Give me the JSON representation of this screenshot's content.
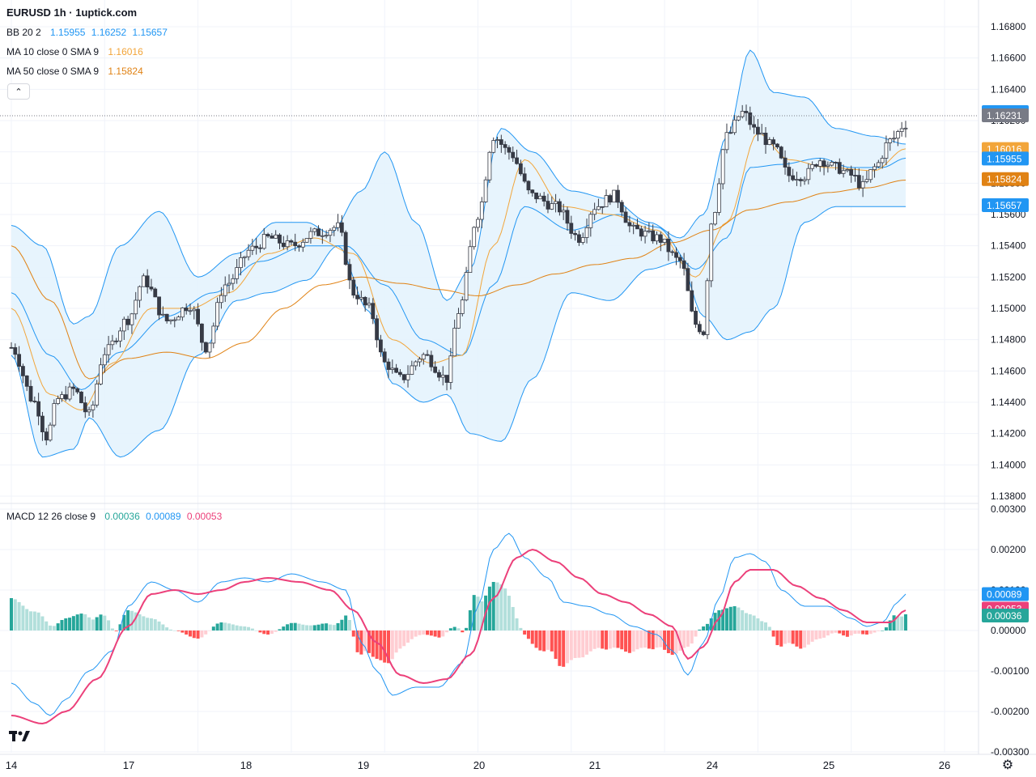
{
  "title": "EURUSD 1h · 1uptick.com",
  "legend": {
    "bb": {
      "label": "BB 20 2",
      "values": [
        "1.15955",
        "1.16252",
        "1.15657"
      ]
    },
    "ma10": {
      "label": "MA 10 close 0 SMA 9",
      "value": "1.16016"
    },
    "ma50": {
      "label": "MA 50 close 0 SMA 9",
      "value": "1.15824"
    },
    "macd": {
      "label": "MACD 12 26 close 9",
      "values": [
        "0.00036",
        "0.00089",
        "0.00053"
      ]
    }
  },
  "colors": {
    "bb": "#2196f3",
    "bb_fill": "#e3f2fd",
    "ma10": "#f2a53a",
    "ma50": "#e08214",
    "macd_line": "#2196f3",
    "signal_line": "#ec407a",
    "hist_pos_strong": "#26a69a",
    "hist_pos_weak": "#b2dfdb",
    "hist_neg_strong": "#ff5252",
    "hist_neg_weak": "#ffcdd2",
    "candle": "#363a45",
    "current_price": "#787b86"
  },
  "icons": {
    "collapse": "chevron-up-icon",
    "logo": "tradingview-logo-icon",
    "settings": "gear-icon"
  },
  "chart_data": [
    {
      "type": "candlestick",
      "title": "EURUSD 1h · 1uptick.com",
      "x_ticks": [
        "14",
        "17",
        "18",
        "19",
        "20",
        "21",
        "24",
        "25",
        "26"
      ],
      "y_ticks": [
        "1.16800",
        "1.16600",
        "1.16400",
        "1.16200",
        "1.16000",
        "1.15800",
        "1.15600",
        "1.15400",
        "1.15200",
        "1.15000",
        "1.14800",
        "1.14600",
        "1.14400",
        "1.14200",
        "1.14000",
        "1.13800"
      ],
      "ylim": [
        1.1378,
        1.1683
      ],
      "bars_per_day": 24,
      "last_price": "1.16231",
      "axis_labels": [
        {
          "text": "1.16252",
          "value": 1.16252,
          "color": "#2196f3"
        },
        {
          "text": "1.16231",
          "value": 1.16231,
          "color": "#787b86"
        },
        {
          "text": "1.16016",
          "value": 1.16016,
          "color": "#f2a53a"
        },
        {
          "text": "1.15955",
          "value": 1.15955,
          "color": "#2196f3"
        },
        {
          "text": "1.15824",
          "value": 1.15824,
          "color": "#e08214"
        },
        {
          "text": "1.15657",
          "value": 1.15657,
          "color": "#2196f3"
        }
      ],
      "close_anchors": [
        [
          0,
          1.1475
        ],
        [
          6,
          1.144
        ],
        [
          9,
          1.1418
        ],
        [
          12,
          1.1442
        ],
        [
          16,
          1.1448
        ],
        [
          20,
          1.1432
        ],
        [
          24,
          1.1472
        ],
        [
          30,
          1.1493
        ],
        [
          34,
          1.1518
        ],
        [
          40,
          1.1492
        ],
        [
          46,
          1.1502
        ],
        [
          50,
          1.1475
        ],
        [
          55,
          1.1515
        ],
        [
          62,
          1.1538
        ],
        [
          66,
          1.1545
        ],
        [
          72,
          1.154
        ],
        [
          78,
          1.1548
        ],
        [
          84,
          1.1552
        ],
        [
          88,
          1.151
        ],
        [
          92,
          1.15
        ],
        [
          96,
          1.1465
        ],
        [
          100,
          1.1455
        ],
        [
          106,
          1.147
        ],
        [
          112,
          1.1455
        ],
        [
          115,
          1.1498
        ],
        [
          120,
          1.156
        ],
        [
          124,
          1.161
        ],
        [
          128,
          1.16
        ],
        [
          134,
          1.1572
        ],
        [
          140,
          1.1565
        ],
        [
          146,
          1.1545
        ],
        [
          150,
          1.1565
        ],
        [
          155,
          1.1572
        ],
        [
          160,
          1.155
        ],
        [
          166,
          1.1545
        ],
        [
          172,
          1.153
        ],
        [
          176,
          1.149
        ],
        [
          178,
          1.1485
        ],
        [
          180,
          1.1555
        ],
        [
          184,
          1.161
        ],
        [
          188,
          1.1625
        ],
        [
          192,
          1.1612
        ],
        [
          196,
          1.1603
        ],
        [
          200,
          1.1585
        ],
        [
          204,
          1.1585
        ],
        [
          208,
          1.1595
        ],
        [
          212,
          1.159
        ],
        [
          216,
          1.1585
        ],
        [
          219,
          1.1578
        ],
        [
          222,
          1.159
        ],
        [
          226,
          1.1607
        ],
        [
          230,
          1.1618
        ]
      ],
      "bollinger": {
        "upper": [
          [
            0,
            1.1553
          ],
          [
            8,
            1.154
          ],
          [
            16,
            1.149
          ],
          [
            20,
            1.1495
          ],
          [
            28,
            1.154
          ],
          [
            38,
            1.1562
          ],
          [
            48,
            1.152
          ],
          [
            58,
            1.1535
          ],
          [
            68,
            1.1555
          ],
          [
            76,
            1.1555
          ],
          [
            82,
            1.1548
          ],
          [
            90,
            1.1575
          ],
          [
            96,
            1.16
          ],
          [
            104,
            1.1555
          ],
          [
            112,
            1.1505
          ],
          [
            118,
            1.1525
          ],
          [
            126,
            1.1615
          ],
          [
            134,
            1.16
          ],
          [
            144,
            1.1575
          ],
          [
            154,
            1.157
          ],
          [
            164,
            1.1555
          ],
          [
            172,
            1.1545
          ],
          [
            178,
            1.156
          ],
          [
            184,
            1.161
          ],
          [
            190,
            1.1665
          ],
          [
            196,
            1.1638
          ],
          [
            204,
            1.1635
          ],
          [
            212,
            1.1615
          ],
          [
            222,
            1.161
          ],
          [
            230,
            1.1605
          ]
        ],
        "lower": [
          [
            0,
            1.147
          ],
          [
            8,
            1.1405
          ],
          [
            16,
            1.141
          ],
          [
            20,
            1.143
          ],
          [
            28,
            1.1405
          ],
          [
            38,
            1.1422
          ],
          [
            48,
            1.147
          ],
          [
            58,
            1.1505
          ],
          [
            66,
            1.151
          ],
          [
            76,
            1.1518
          ],
          [
            84,
            1.154
          ],
          [
            92,
            1.1498
          ],
          [
            98,
            1.1452
          ],
          [
            106,
            1.144
          ],
          [
            112,
            1.1445
          ],
          [
            118,
            1.142
          ],
          [
            126,
            1.1415
          ],
          [
            134,
            1.1455
          ],
          [
            144,
            1.151
          ],
          [
            154,
            1.1505
          ],
          [
            164,
            1.1525
          ],
          [
            172,
            1.153
          ],
          [
            178,
            1.1495
          ],
          [
            184,
            1.148
          ],
          [
            190,
            1.1485
          ],
          [
            196,
            1.15
          ],
          [
            204,
            1.1555
          ],
          [
            212,
            1.1565
          ],
          [
            222,
            1.1565
          ],
          [
            230,
            1.1565
          ]
        ],
        "middle": [
          [
            0,
            1.151
          ],
          [
            10,
            1.147
          ],
          [
            18,
            1.1448
          ],
          [
            28,
            1.1472
          ],
          [
            40,
            1.1495
          ],
          [
            52,
            1.151
          ],
          [
            64,
            1.153
          ],
          [
            76,
            1.154
          ],
          [
            86,
            1.154
          ],
          [
            96,
            1.1515
          ],
          [
            106,
            1.148
          ],
          [
            116,
            1.147
          ],
          [
            124,
            1.1515
          ],
          [
            132,
            1.1565
          ],
          [
            144,
            1.155
          ],
          [
            156,
            1.156
          ],
          [
            166,
            1.1552
          ],
          [
            176,
            1.1525
          ],
          [
            184,
            1.1545
          ],
          [
            190,
            1.159
          ],
          [
            198,
            1.1592
          ],
          [
            208,
            1.1596
          ],
          [
            216,
            1.159
          ],
          [
            224,
            1.159
          ],
          [
            230,
            1.1596
          ]
        ]
      },
      "ma10": [
        [
          0,
          1.15
        ],
        [
          10,
          1.1445
        ],
        [
          18,
          1.1435
        ],
        [
          26,
          1.1465
        ],
        [
          36,
          1.15
        ],
        [
          46,
          1.15
        ],
        [
          56,
          1.151
        ],
        [
          66,
          1.1535
        ],
        [
          78,
          1.1545
        ],
        [
          88,
          1.1535
        ],
        [
          98,
          1.148
        ],
        [
          108,
          1.1465
        ],
        [
          116,
          1.147
        ],
        [
          124,
          1.154
        ],
        [
          132,
          1.1595
        ],
        [
          142,
          1.1565
        ],
        [
          154,
          1.156
        ],
        [
          166,
          1.155
        ],
        [
          176,
          1.152
        ],
        [
          184,
          1.1555
        ],
        [
          192,
          1.1612
        ],
        [
          200,
          1.1595
        ],
        [
          210,
          1.159
        ],
        [
          222,
          1.1588
        ],
        [
          230,
          1.1602
        ]
      ],
      "ma50": [
        [
          0,
          1.154
        ],
        [
          10,
          1.1505
        ],
        [
          20,
          1.1455
        ],
        [
          30,
          1.1468
        ],
        [
          40,
          1.1472
        ],
        [
          50,
          1.1468
        ],
        [
          60,
          1.1478
        ],
        [
          70,
          1.15
        ],
        [
          80,
          1.1515
        ],
        [
          90,
          1.152
        ],
        [
          100,
          1.1516
        ],
        [
          110,
          1.1512
        ],
        [
          120,
          1.1508
        ],
        [
          130,
          1.1515
        ],
        [
          140,
          1.1522
        ],
        [
          150,
          1.1528
        ],
        [
          160,
          1.1532
        ],
        [
          170,
          1.1542
        ],
        [
          180,
          1.155
        ],
        [
          190,
          1.1563
        ],
        [
          200,
          1.1568
        ],
        [
          210,
          1.1574
        ],
        [
          220,
          1.1577
        ],
        [
          230,
          1.1582
        ]
      ]
    },
    {
      "type": "macd",
      "title": "MACD 12 26 close 9",
      "y_ticks": [
        "0.00300",
        "0.00200",
        "0.00100",
        "0.00000",
        "-0.00100",
        "-0.00200",
        "-0.00300"
      ],
      "ylim": [
        -0.003,
        0.003
      ],
      "axis_labels": [
        {
          "text": "0.00089",
          "value": 0.00089,
          "color": "#2196f3"
        },
        {
          "text": "0.00053",
          "value": 0.00053,
          "color": "#ec407a"
        },
        {
          "text": "0.00036",
          "value": 0.00036,
          "color": "#26a69a"
        }
      ],
      "macd": [
        [
          0,
          -0.0013
        ],
        [
          6,
          -0.0018
        ],
        [
          10,
          -0.0021
        ],
        [
          14,
          -0.0017
        ],
        [
          20,
          -0.001
        ],
        [
          26,
          -0.0005
        ],
        [
          30,
          0.0006
        ],
        [
          36,
          0.0012
        ],
        [
          42,
          0.001
        ],
        [
          48,
          0.0007
        ],
        [
          54,
          0.0012
        ],
        [
          60,
          0.0013
        ],
        [
          66,
          0.0012
        ],
        [
          72,
          0.0014
        ],
        [
          80,
          0.0012
        ],
        [
          86,
          0.001
        ],
        [
          90,
          -0.0003
        ],
        [
          94,
          -0.001
        ],
        [
          98,
          -0.0016
        ],
        [
          104,
          -0.0014
        ],
        [
          110,
          -0.0014
        ],
        [
          116,
          -0.0008
        ],
        [
          120,
          0.0006
        ],
        [
          124,
          0.002
        ],
        [
          128,
          0.0024
        ],
        [
          132,
          0.0018
        ],
        [
          138,
          0.0013
        ],
        [
          142,
          0.0007
        ],
        [
          148,
          0.0006
        ],
        [
          154,
          0.0004
        ],
        [
          160,
          0.0001
        ],
        [
          166,
          -0.0001
        ],
        [
          170,
          -0.0005
        ],
        [
          174,
          -0.0011
        ],
        [
          178,
          -0.0003
        ],
        [
          182,
          0.0008
        ],
        [
          186,
          0.0018
        ],
        [
          190,
          0.0019
        ],
        [
          194,
          0.0017
        ],
        [
          198,
          0.001
        ],
        [
          204,
          0.0006
        ],
        [
          210,
          0.0006
        ],
        [
          216,
          0.0003
        ],
        [
          220,
          0.0001
        ],
        [
          224,
          0.0002
        ],
        [
          228,
          0.0007
        ],
        [
          230,
          0.0009
        ]
      ],
      "signal": [
        [
          0,
          -0.0021
        ],
        [
          8,
          -0.0023
        ],
        [
          14,
          -0.002
        ],
        [
          22,
          -0.0012
        ],
        [
          30,
          0.0001
        ],
        [
          36,
          0.0009
        ],
        [
          42,
          0.001
        ],
        [
          48,
          0.0009
        ],
        [
          54,
          0.001
        ],
        [
          60,
          0.0012
        ],
        [
          66,
          0.0013
        ],
        [
          74,
          0.0012
        ],
        [
          82,
          0.001
        ],
        [
          88,
          0.0005
        ],
        [
          94,
          -0.0003
        ],
        [
          100,
          -0.0011
        ],
        [
          106,
          -0.0013
        ],
        [
          112,
          -0.0012
        ],
        [
          118,
          -0.0006
        ],
        [
          124,
          0.0008
        ],
        [
          130,
          0.0018
        ],
        [
          134,
          0.002
        ],
        [
          140,
          0.0017
        ],
        [
          146,
          0.0013
        ],
        [
          152,
          0.0009
        ],
        [
          158,
          0.0007
        ],
        [
          164,
          0.0004
        ],
        [
          170,
          0.0001
        ],
        [
          174,
          -0.0007
        ],
        [
          178,
          -0.0004
        ],
        [
          182,
          0.0003
        ],
        [
          186,
          0.0012
        ],
        [
          190,
          0.0015
        ],
        [
          196,
          0.0015
        ],
        [
          202,
          0.0011
        ],
        [
          208,
          0.0008
        ],
        [
          214,
          0.0005
        ],
        [
          220,
          0.0002
        ],
        [
          226,
          0.0002
        ],
        [
          230,
          0.0005
        ]
      ]
    }
  ]
}
